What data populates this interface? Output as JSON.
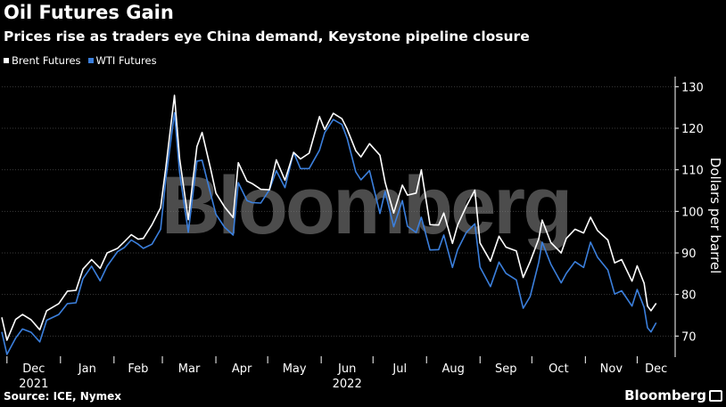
{
  "title": "Oil Futures Gain",
  "subtitle": "Prices rise as traders eye China demand, Keystone pipeline closure",
  "source": "Source: ICE, Nymex",
  "brand": "Bloomberg",
  "watermark": "Bloomberg",
  "colors": {
    "brent": "#ffffff",
    "wti": "#3b7fdc",
    "grid": "#3a3a3a",
    "background": "#000000"
  },
  "chart_data": {
    "type": "line",
    "title": "Oil Futures Gain",
    "subtitle": "Prices rise as traders eye China demand, Keystone pipeline closure",
    "ylabel": "Dollars per barrel",
    "ylim": [
      66,
      132
    ],
    "yticks": [
      70,
      80,
      90,
      100,
      110,
      120,
      130
    ],
    "xlim": [
      "2021-11-28",
      "2022-12-23"
    ],
    "xticks": [
      {
        "label": "Dec",
        "date": "2021-12-01",
        "year": "2021"
      },
      {
        "label": "Jan",
        "date": "2022-01-01"
      },
      {
        "label": "Feb",
        "date": "2022-02-01"
      },
      {
        "label": "Mar",
        "date": "2022-03-01"
      },
      {
        "label": "Apr",
        "date": "2022-04-01"
      },
      {
        "label": "May",
        "date": "2022-05-01"
      },
      {
        "label": "Jun",
        "date": "2022-06-01",
        "year": "2022"
      },
      {
        "label": "Jul",
        "date": "2022-07-01"
      },
      {
        "label": "Aug",
        "date": "2022-08-01"
      },
      {
        "label": "Sep",
        "date": "2022-09-01"
      },
      {
        "label": "Oct",
        "date": "2022-10-01"
      },
      {
        "label": "Nov",
        "date": "2022-11-01"
      },
      {
        "label": "Dec",
        "date": "2022-12-01"
      }
    ],
    "grid": true,
    "legend_position": "top-left",
    "series": [
      {
        "name": "Brent Futures",
        "points": [
          [
            "2021-11-28",
            74.5
          ],
          [
            "2021-12-01",
            69.0
          ],
          [
            "2021-12-06",
            74.0
          ],
          [
            "2021-12-10",
            75.2
          ],
          [
            "2021-12-15",
            73.9
          ],
          [
            "2021-12-20",
            71.5
          ],
          [
            "2021-12-24",
            76.1
          ],
          [
            "2021-12-31",
            77.8
          ],
          [
            "2022-01-05",
            80.8
          ],
          [
            "2022-01-10",
            81.0
          ],
          [
            "2022-01-14",
            86.1
          ],
          [
            "2022-01-19",
            88.4
          ],
          [
            "2022-01-24",
            86.3
          ],
          [
            "2022-01-28",
            90.0
          ],
          [
            "2022-02-03",
            91.1
          ],
          [
            "2022-02-07",
            92.7
          ],
          [
            "2022-02-11",
            94.4
          ],
          [
            "2022-02-15",
            93.3
          ],
          [
            "2022-02-18",
            93.5
          ],
          [
            "2022-02-23",
            96.8
          ],
          [
            "2022-02-28",
            100.9
          ],
          [
            "2022-03-03",
            110.5
          ],
          [
            "2022-03-08",
            127.9
          ],
          [
            "2022-03-11",
            112.7
          ],
          [
            "2022-03-16",
            98.0
          ],
          [
            "2022-03-21",
            115.6
          ],
          [
            "2022-03-24",
            119.0
          ],
          [
            "2022-03-29",
            110.2
          ],
          [
            "2022-04-01",
            104.4
          ],
          [
            "2022-04-06",
            101.1
          ],
          [
            "2022-04-11",
            98.5
          ],
          [
            "2022-04-14",
            111.7
          ],
          [
            "2022-04-19",
            107.3
          ],
          [
            "2022-04-22",
            106.7
          ],
          [
            "2022-04-27",
            105.3
          ],
          [
            "2022-05-02",
            105.2
          ],
          [
            "2022-05-06",
            112.4
          ],
          [
            "2022-05-11",
            107.5
          ],
          [
            "2022-05-16",
            114.2
          ],
          [
            "2022-05-20",
            112.6
          ],
          [
            "2022-05-25",
            114.0
          ],
          [
            "2022-05-31",
            122.8
          ],
          [
            "2022-06-03",
            119.7
          ],
          [
            "2022-06-08",
            123.6
          ],
          [
            "2022-06-13",
            122.3
          ],
          [
            "2022-06-16",
            119.8
          ],
          [
            "2022-06-21",
            114.6
          ],
          [
            "2022-06-24",
            113.1
          ],
          [
            "2022-06-29",
            116.3
          ],
          [
            "2022-07-05",
            113.5
          ],
          [
            "2022-07-08",
            107.0
          ],
          [
            "2022-07-13",
            99.6
          ],
          [
            "2022-07-18",
            106.3
          ],
          [
            "2022-07-21",
            103.9
          ],
          [
            "2022-07-26",
            104.4
          ],
          [
            "2022-07-29",
            110.0
          ],
          [
            "2022-08-03",
            96.8
          ],
          [
            "2022-08-08",
            96.7
          ],
          [
            "2022-08-11",
            99.6
          ],
          [
            "2022-08-16",
            92.3
          ],
          [
            "2022-08-19",
            96.7
          ],
          [
            "2022-08-24",
            101.2
          ],
          [
            "2022-08-29",
            105.1
          ],
          [
            "2022-09-01",
            92.4
          ],
          [
            "2022-09-07",
            88.0
          ],
          [
            "2022-09-12",
            94.0
          ],
          [
            "2022-09-16",
            91.4
          ],
          [
            "2022-09-22",
            90.5
          ],
          [
            "2022-09-26",
            84.1
          ],
          [
            "2022-09-30",
            87.9
          ],
          [
            "2022-10-05",
            93.4
          ],
          [
            "2022-10-07",
            97.9
          ],
          [
            "2022-10-12",
            92.5
          ],
          [
            "2022-10-18",
            90.0
          ],
          [
            "2022-10-21",
            93.5
          ],
          [
            "2022-10-26",
            95.7
          ],
          [
            "2022-10-31",
            94.8
          ],
          [
            "2022-11-04",
            98.6
          ],
          [
            "2022-11-08",
            95.4
          ],
          [
            "2022-11-14",
            93.1
          ],
          [
            "2022-11-18",
            87.6
          ],
          [
            "2022-11-22",
            88.4
          ],
          [
            "2022-11-28",
            83.2
          ],
          [
            "2022-12-01",
            86.9
          ],
          [
            "2022-12-05",
            82.7
          ],
          [
            "2022-12-07",
            77.2
          ],
          [
            "2022-12-09",
            76.1
          ],
          [
            "2022-12-12",
            77.9
          ]
        ]
      },
      {
        "name": "WTI Futures",
        "points": [
          [
            "2021-11-28",
            71.0
          ],
          [
            "2021-12-01",
            65.6
          ],
          [
            "2021-12-06",
            69.5
          ],
          [
            "2021-12-10",
            71.7
          ],
          [
            "2021-12-15",
            70.9
          ],
          [
            "2021-12-20",
            68.6
          ],
          [
            "2021-12-24",
            73.8
          ],
          [
            "2021-12-31",
            75.2
          ],
          [
            "2022-01-05",
            77.8
          ],
          [
            "2022-01-10",
            78.0
          ],
          [
            "2022-01-14",
            83.8
          ],
          [
            "2022-01-19",
            86.8
          ],
          [
            "2022-01-24",
            83.3
          ],
          [
            "2022-01-28",
            86.8
          ],
          [
            "2022-02-03",
            90.3
          ],
          [
            "2022-02-07",
            91.3
          ],
          [
            "2022-02-11",
            93.1
          ],
          [
            "2022-02-15",
            92.1
          ],
          [
            "2022-02-18",
            91.1
          ],
          [
            "2022-02-23",
            92.1
          ],
          [
            "2022-02-28",
            95.7
          ],
          [
            "2022-03-03",
            107.7
          ],
          [
            "2022-03-08",
            123.7
          ],
          [
            "2022-03-11",
            109.3
          ],
          [
            "2022-03-16",
            95.0
          ],
          [
            "2022-03-21",
            112.1
          ],
          [
            "2022-03-24",
            112.3
          ],
          [
            "2022-03-29",
            104.2
          ],
          [
            "2022-04-01",
            99.3
          ],
          [
            "2022-04-06",
            96.2
          ],
          [
            "2022-04-11",
            94.3
          ],
          [
            "2022-04-14",
            106.9
          ],
          [
            "2022-04-19",
            102.6
          ],
          [
            "2022-04-22",
            102.1
          ],
          [
            "2022-04-27",
            102.0
          ],
          [
            "2022-05-02",
            105.2
          ],
          [
            "2022-05-06",
            109.8
          ],
          [
            "2022-05-11",
            105.7
          ],
          [
            "2022-05-16",
            114.2
          ],
          [
            "2022-05-20",
            110.3
          ],
          [
            "2022-05-25",
            110.3
          ],
          [
            "2022-05-31",
            114.7
          ],
          [
            "2022-06-03",
            118.9
          ],
          [
            "2022-06-08",
            122.1
          ],
          [
            "2022-06-13",
            120.9
          ],
          [
            "2022-06-16",
            117.6
          ],
          [
            "2022-06-21",
            109.5
          ],
          [
            "2022-06-24",
            107.6
          ],
          [
            "2022-06-29",
            109.8
          ],
          [
            "2022-07-05",
            99.5
          ],
          [
            "2022-07-08",
            104.8
          ],
          [
            "2022-07-13",
            96.3
          ],
          [
            "2022-07-18",
            102.6
          ],
          [
            "2022-07-21",
            96.4
          ],
          [
            "2022-07-26",
            94.9
          ],
          [
            "2022-07-29",
            98.6
          ],
          [
            "2022-08-03",
            90.7
          ],
          [
            "2022-08-08",
            90.8
          ],
          [
            "2022-08-11",
            94.3
          ],
          [
            "2022-08-16",
            86.5
          ],
          [
            "2022-08-19",
            90.8
          ],
          [
            "2022-08-24",
            94.9
          ],
          [
            "2022-08-29",
            97.0
          ],
          [
            "2022-09-01",
            86.6
          ],
          [
            "2022-09-07",
            81.9
          ],
          [
            "2022-09-12",
            87.8
          ],
          [
            "2022-09-16",
            85.1
          ],
          [
            "2022-09-22",
            83.5
          ],
          [
            "2022-09-26",
            76.7
          ],
          [
            "2022-09-30",
            79.5
          ],
          [
            "2022-10-05",
            87.8
          ],
          [
            "2022-10-07",
            92.6
          ],
          [
            "2022-10-12",
            87.3
          ],
          [
            "2022-10-18",
            82.8
          ],
          [
            "2022-10-21",
            85.1
          ],
          [
            "2022-10-26",
            87.9
          ],
          [
            "2022-10-31",
            86.5
          ],
          [
            "2022-11-04",
            92.6
          ],
          [
            "2022-11-08",
            89.0
          ],
          [
            "2022-11-14",
            85.9
          ],
          [
            "2022-11-18",
            80.1
          ],
          [
            "2022-11-22",
            80.9
          ],
          [
            "2022-11-28",
            77.2
          ],
          [
            "2022-12-01",
            81.2
          ],
          [
            "2022-12-05",
            76.9
          ],
          [
            "2022-12-07",
            72.0
          ],
          [
            "2022-12-09",
            71.0
          ],
          [
            "2022-12-12",
            73.2
          ]
        ]
      }
    ]
  }
}
